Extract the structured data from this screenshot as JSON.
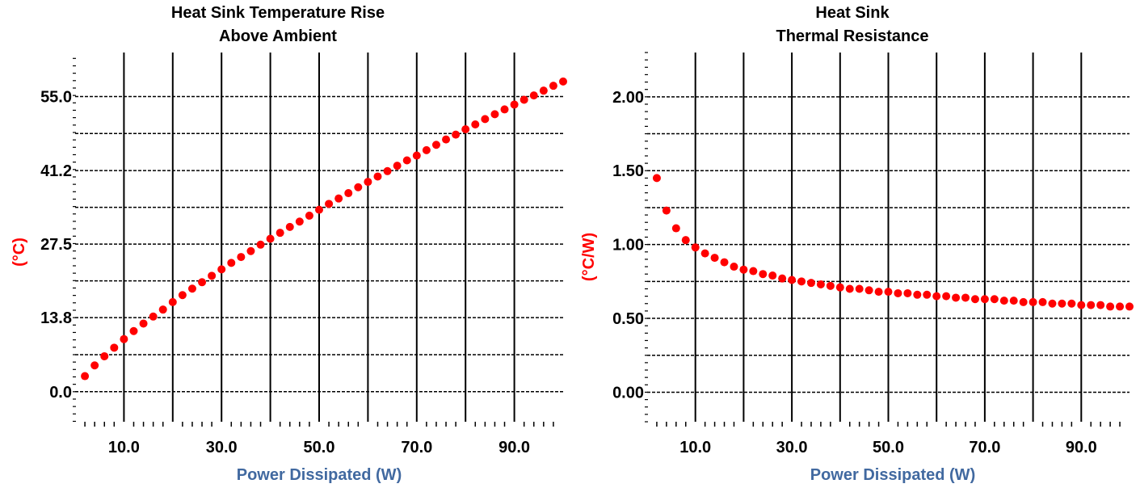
{
  "colors": {
    "points": "#ff0000",
    "ylabel": "#ff0000",
    "xlabel": "#4169a0",
    "grid": "#000000"
  },
  "chart_data": [
    {
      "type": "scatter",
      "title_lines": [
        "Heat Sink Temperature Rise",
        "Above Ambient"
      ],
      "xlabel": "Power Dissipated (W)",
      "ylabel": "(°C)",
      "xlim": [
        0,
        100
      ],
      "ylim": [
        -5.6,
        63.2
      ],
      "xticks": [
        10,
        30,
        50,
        70,
        90
      ],
      "xtick_labels": [
        "10.0",
        "30.0",
        "50.0",
        "70.0",
        "90.0"
      ],
      "yticks": [
        0,
        13.8,
        27.5,
        41.2,
        55.0
      ],
      "ytick_labels": [
        "0.0",
        "13.8",
        "27.5",
        "41.2",
        "55.0"
      ],
      "grid": true,
      "x": [
        2,
        4,
        6,
        8,
        10,
        12,
        14,
        16,
        18,
        20,
        22,
        24,
        26,
        28,
        30,
        32,
        34,
        36,
        38,
        40,
        42,
        44,
        46,
        48,
        50,
        52,
        54,
        56,
        58,
        60,
        62,
        64,
        66,
        68,
        70,
        72,
        74,
        76,
        78,
        80,
        82,
        84,
        86,
        88,
        90,
        92,
        94,
        96,
        98,
        100
      ],
      "y": [
        2.9,
        4.9,
        6.6,
        8.2,
        9.8,
        11.3,
        12.7,
        14.0,
        15.3,
        16.7,
        18.0,
        19.2,
        20.4,
        21.6,
        22.8,
        24.0,
        25.1,
        26.2,
        27.4,
        28.5,
        29.6,
        30.7,
        31.7,
        32.8,
        33.9,
        35.0,
        36.0,
        37.0,
        38.1,
        39.1,
        40.1,
        41.1,
        42.1,
        43.1,
        44.0,
        45.0,
        46.0,
        47.0,
        47.9,
        48.9,
        49.8,
        50.8,
        51.7,
        52.6,
        53.5,
        54.4,
        55.2,
        56.1,
        57.0,
        57.8
      ]
    },
    {
      "type": "scatter",
      "title_lines": [
        "Heat Sink",
        "Thermal Resistance"
      ],
      "xlabel": "Power Dissipated (W)",
      "ylabel": "(°C/W)",
      "xlim": [
        0,
        100
      ],
      "ylim": [
        -0.2,
        2.3
      ],
      "xticks": [
        10,
        30,
        50,
        70,
        90
      ],
      "xtick_labels": [
        "10.0",
        "30.0",
        "50.0",
        "70.0",
        "90.0"
      ],
      "yticks": [
        0,
        0.5,
        1.0,
        1.5,
        2.0
      ],
      "ytick_labels": [
        "0.00",
        "0.50",
        "1.00",
        "1.50",
        "2.00"
      ],
      "grid": true,
      "x": [
        2,
        4,
        6,
        8,
        10,
        12,
        14,
        16,
        18,
        20,
        22,
        24,
        26,
        28,
        30,
        32,
        34,
        36,
        38,
        40,
        42,
        44,
        46,
        48,
        50,
        52,
        54,
        56,
        58,
        60,
        62,
        64,
        66,
        68,
        70,
        72,
        74,
        76,
        78,
        80,
        82,
        84,
        86,
        88,
        90,
        92,
        94,
        96,
        98,
        100
      ],
      "y": [
        1.45,
        1.23,
        1.11,
        1.03,
        0.98,
        0.94,
        0.91,
        0.88,
        0.85,
        0.83,
        0.82,
        0.8,
        0.79,
        0.77,
        0.76,
        0.75,
        0.74,
        0.73,
        0.72,
        0.71,
        0.7,
        0.7,
        0.69,
        0.68,
        0.68,
        0.67,
        0.67,
        0.66,
        0.66,
        0.65,
        0.65,
        0.64,
        0.64,
        0.63,
        0.63,
        0.63,
        0.62,
        0.62,
        0.61,
        0.61,
        0.61,
        0.6,
        0.6,
        0.6,
        0.59,
        0.59,
        0.59,
        0.58,
        0.58,
        0.58
      ]
    }
  ]
}
